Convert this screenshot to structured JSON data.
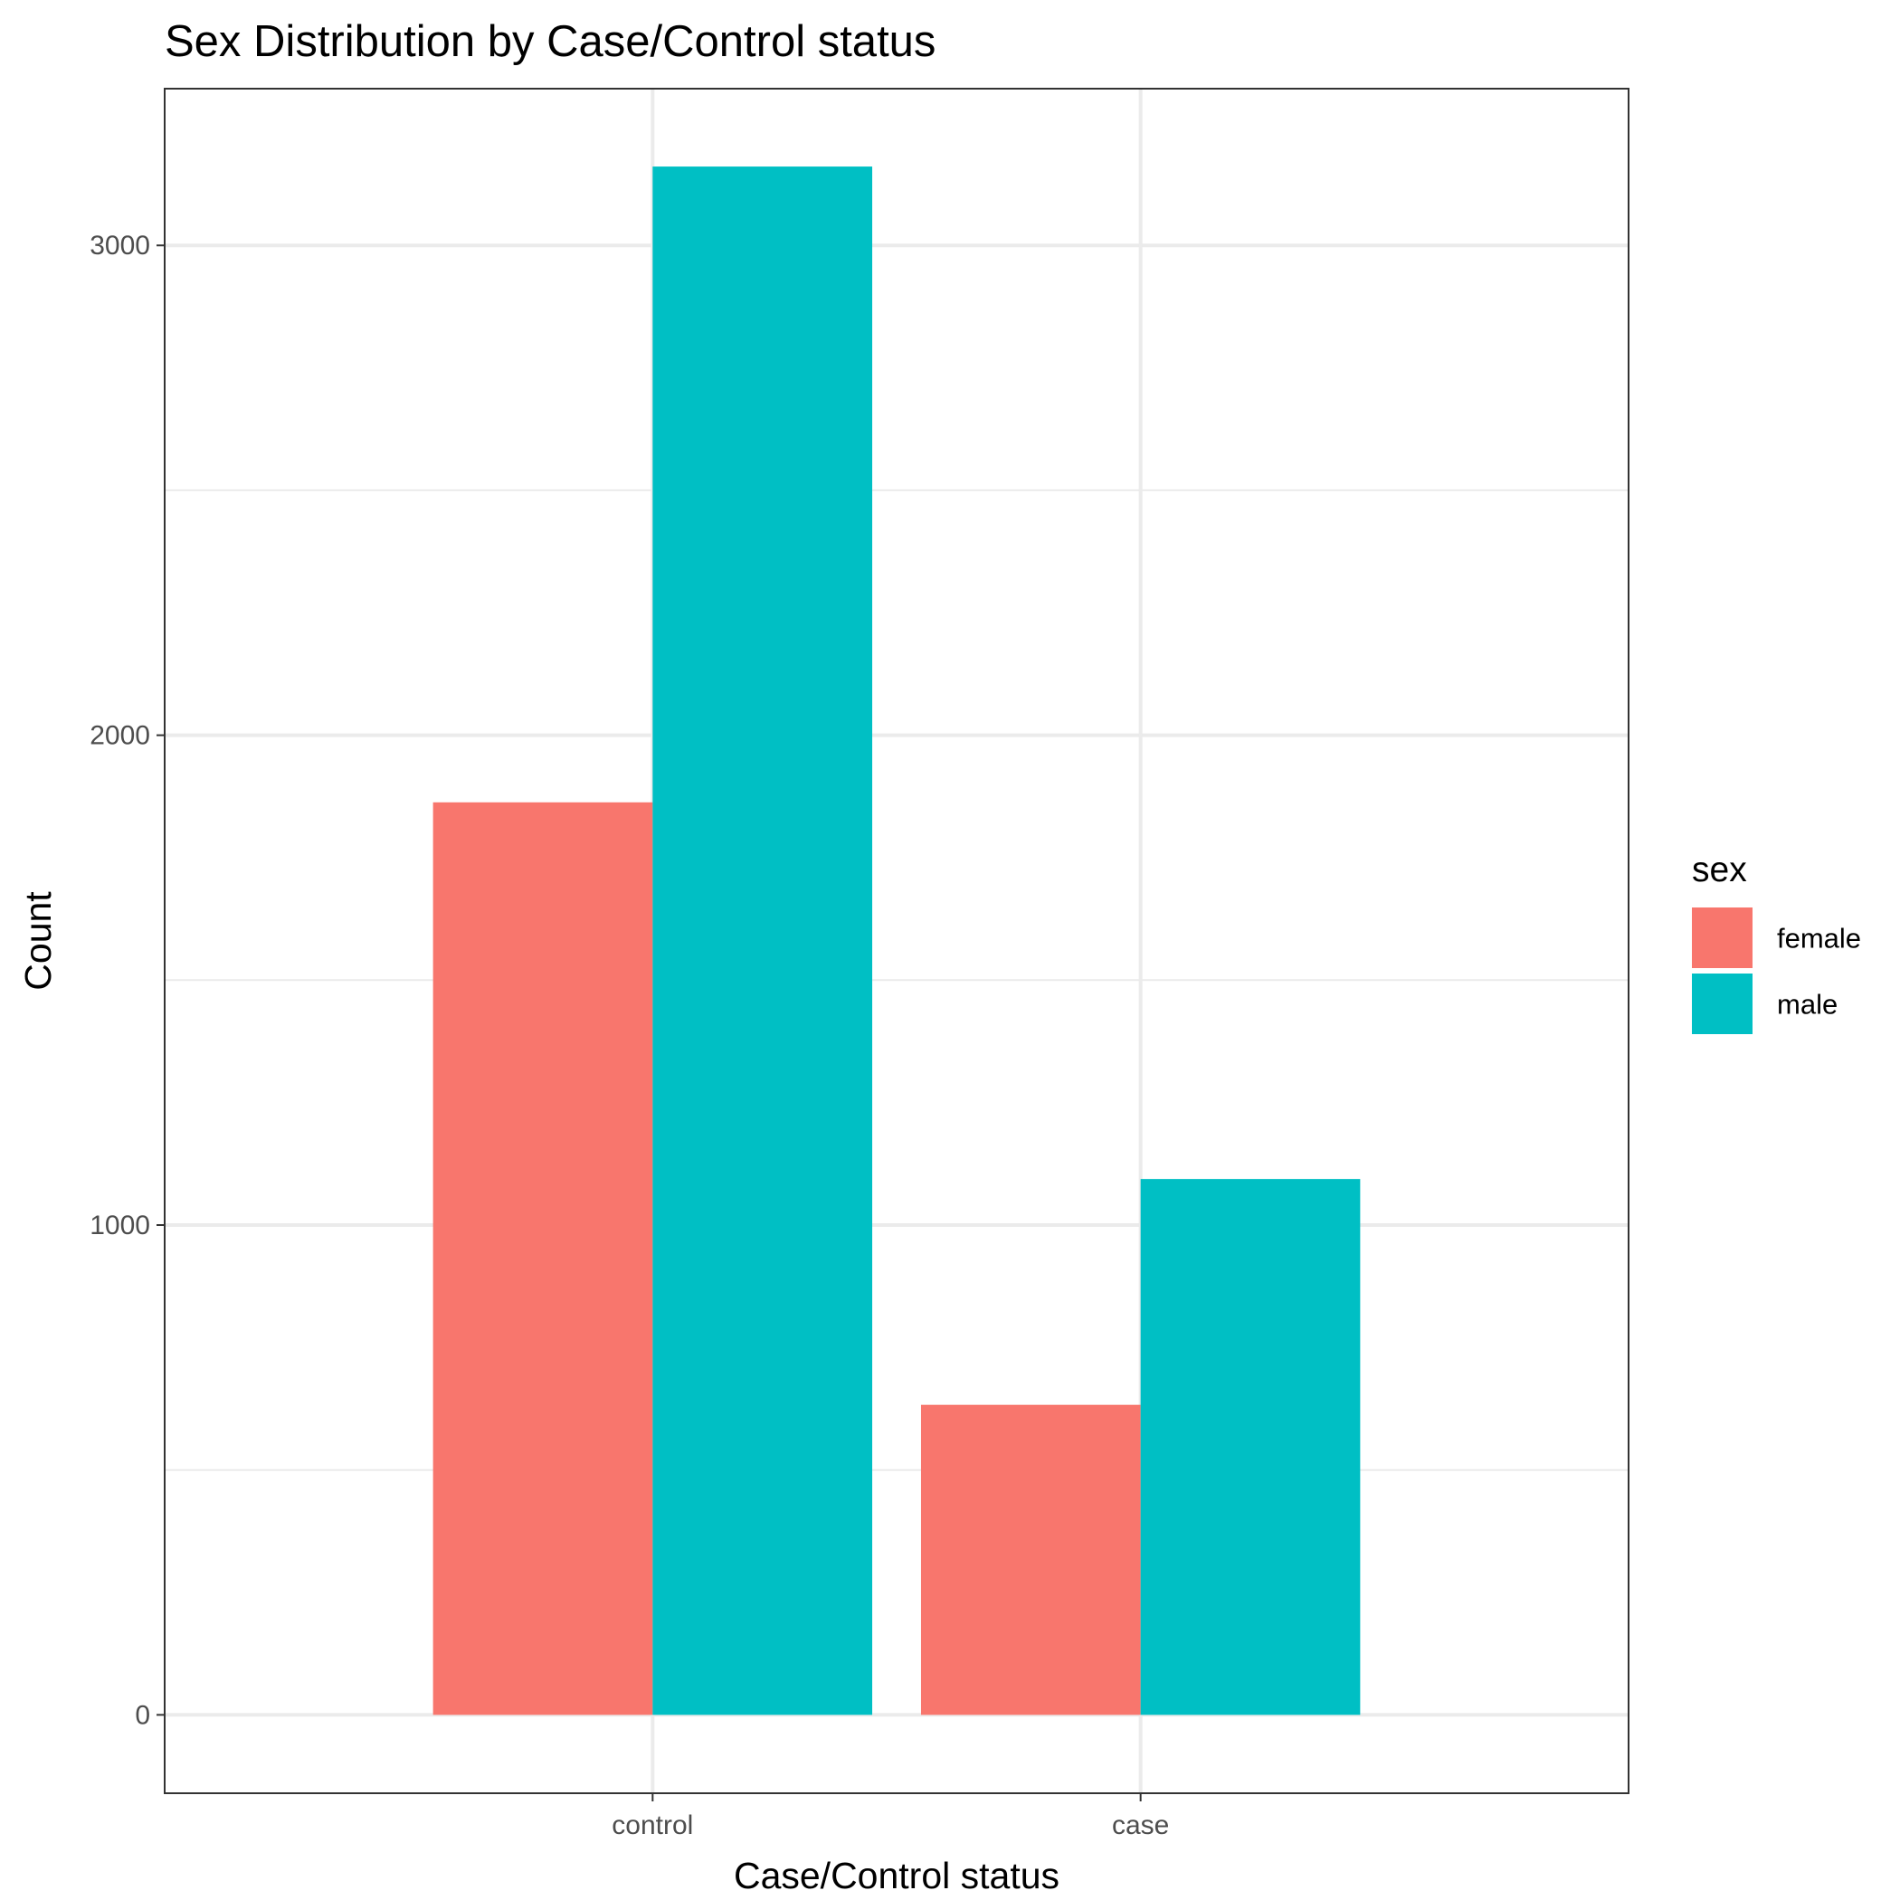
{
  "chart_data": {
    "type": "bar",
    "title": "Sex Distribution by Case/Control status",
    "xlabel": "Case/Control status",
    "ylabel": "Count",
    "categories": [
      "control",
      "case"
    ],
    "series": [
      {
        "name": "female",
        "values": [
          1863,
          633
        ],
        "color": "#F8766D"
      },
      {
        "name": "male",
        "values": [
          3161,
          1094
        ],
        "color": "#00BFC4"
      }
    ],
    "yticks": [
      0,
      1000,
      2000,
      3000
    ],
    "ylim": [
      -160,
      3320
    ],
    "legend": {
      "title": "sex",
      "position": "right"
    },
    "grid": true,
    "background": "#ffffff",
    "grid_color": "#ebebeb",
    "panel_border_color": "#333333"
  }
}
